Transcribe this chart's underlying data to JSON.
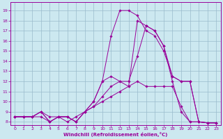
{
  "xlabel": "Windchill (Refroidissement éolien,°C)",
  "bg_color": "#cce8f0",
  "grid_color": "#99bbcc",
  "line_color": "#990099",
  "xlim": [
    -0.5,
    23.5
  ],
  "ylim": [
    7.7,
    19.8
  ],
  "xticks": [
    0,
    1,
    2,
    3,
    4,
    5,
    6,
    7,
    8,
    9,
    10,
    11,
    12,
    13,
    14,
    15,
    16,
    17,
    18,
    19,
    20,
    21,
    22,
    23
  ],
  "yticks": [
    8,
    9,
    10,
    11,
    12,
    13,
    14,
    15,
    16,
    17,
    18,
    19
  ],
  "lines": [
    {
      "x": [
        0,
        1,
        2,
        3,
        4,
        5,
        6,
        7,
        8,
        9,
        10,
        11,
        12,
        13,
        14,
        15,
        16,
        17,
        18,
        19,
        20,
        21,
        22,
        23
      ],
      "y": [
        8.5,
        8.5,
        8.5,
        8.5,
        8.0,
        8.5,
        8.0,
        8.5,
        9.0,
        9.5,
        10.0,
        10.5,
        11.0,
        11.5,
        12.0,
        11.5,
        11.5,
        11.5,
        11.5,
        9.5,
        8.0,
        8.0,
        7.9,
        7.9
      ]
    },
    {
      "x": [
        0,
        1,
        2,
        3,
        4,
        5,
        6,
        7,
        8,
        9,
        10,
        11,
        12,
        13,
        14,
        15,
        16,
        17,
        18,
        19,
        20,
        21,
        22,
        23
      ],
      "y": [
        8.5,
        8.5,
        8.5,
        9.0,
        8.0,
        8.5,
        8.5,
        8.0,
        9.0,
        9.5,
        10.5,
        11.5,
        12.0,
        12.0,
        14.5,
        17.5,
        17.0,
        15.5,
        12.0,
        9.0,
        8.0,
        8.0,
        7.9,
        7.9
      ]
    },
    {
      "x": [
        0,
        1,
        2,
        3,
        4,
        5,
        6,
        7,
        8,
        9,
        10,
        11,
        12,
        13,
        14,
        15,
        16,
        17,
        18,
        19,
        20,
        21,
        22,
        23
      ],
      "y": [
        8.5,
        8.5,
        8.5,
        9.0,
        8.5,
        8.5,
        8.5,
        8.0,
        9.0,
        10.0,
        12.0,
        16.5,
        19.0,
        19.0,
        18.5,
        17.0,
        16.5,
        15.0,
        12.5,
        12.0,
        12.0,
        8.0,
        7.9,
        7.9
      ]
    },
    {
      "x": [
        0,
        1,
        2,
        3,
        4,
        5,
        6,
        7,
        8,
        9,
        10,
        11,
        12,
        13,
        14,
        15,
        16,
        17,
        18,
        19,
        20,
        21,
        22,
        23
      ],
      "y": [
        8.5,
        8.5,
        8.5,
        9.0,
        8.0,
        8.5,
        8.5,
        8.0,
        9.0,
        10.0,
        12.0,
        12.5,
        12.0,
        11.5,
        18.0,
        17.5,
        17.0,
        15.5,
        12.5,
        12.0,
        12.0,
        8.0,
        7.9,
        7.9
      ]
    }
  ]
}
